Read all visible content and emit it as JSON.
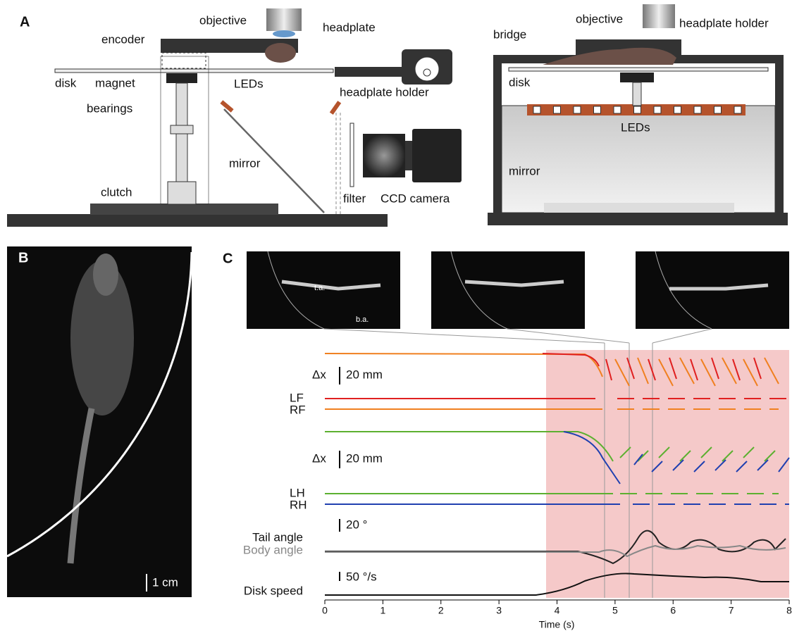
{
  "panel_a": {
    "label": "A",
    "left": {
      "objective": "objective",
      "headplate": "headplate",
      "encoder": "encoder",
      "disk": "disk",
      "magnet": "magnet",
      "bearings": "bearings",
      "leds": "LEDs",
      "headplate_holder": "headplate holder",
      "mirror": "mirror",
      "clutch": "clutch",
      "filter": "filter",
      "camera": "CCD camera"
    },
    "right": {
      "objective": "objective",
      "headplate_holder": "headplate holder",
      "bridge": "bridge",
      "disk": "disk",
      "leds": "LEDs",
      "mirror": "mirror"
    }
  },
  "panel_b": {
    "label": "B",
    "scale": "1 cm"
  },
  "panel_c": {
    "label": "C",
    "tail_label": "t.a.",
    "body_label": "b.a.",
    "delta_fore": "Δx",
    "scale_fore": "20 mm",
    "lf": "LF",
    "rf": "RF",
    "delta_hind": "Δx",
    "scale_hind": "20 mm",
    "lh": "LH",
    "rh": "RH",
    "scale_angle": "20 °",
    "tail_angle": "Tail angle",
    "body_angle": "Body angle",
    "scale_speed": "50 °/s",
    "disk_speed": "Disk speed",
    "xticks": [
      0,
      1,
      2,
      3,
      4,
      5,
      6,
      7,
      8
    ],
    "xlabel": "Time (s)"
  }
}
